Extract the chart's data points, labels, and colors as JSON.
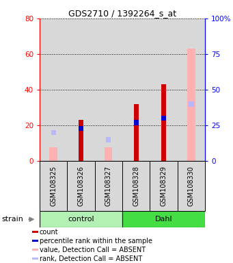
{
  "title": "GDS2710 / 1392264_s_at",
  "samples": [
    "GSM108325",
    "GSM108326",
    "GSM108327",
    "GSM108328",
    "GSM108329",
    "GSM108330"
  ],
  "groups": [
    "control",
    "control",
    "control",
    "Dahl",
    "Dahl",
    "Dahl"
  ],
  "group_names": [
    "control",
    "Dahl"
  ],
  "group_colors_light": "#b3f0b3",
  "group_colors_dark": "#44dd44",
  "count": [
    null,
    23,
    null,
    32,
    43,
    null
  ],
  "percentile_rank": [
    null,
    23,
    null,
    27,
    30,
    null
  ],
  "absent_value": [
    8,
    null,
    8,
    null,
    null,
    63
  ],
  "absent_rank": [
    20,
    null,
    15,
    null,
    null,
    40
  ],
  "count_color": "#cc0000",
  "rank_color": "#0000cc",
  "absent_value_color": "#ffb0b0",
  "absent_rank_color": "#b8b8ff",
  "ylim_left": [
    0,
    80
  ],
  "ylim_right": [
    0,
    100
  ],
  "yticks_left": [
    0,
    20,
    40,
    60,
    80
  ],
  "yticks_right": [
    0,
    25,
    50,
    75,
    100
  ],
  "ytick_labels_right": [
    "0",
    "25",
    "50",
    "75",
    "100%"
  ],
  "bg_color": "#d8d8d8",
  "legend_items": [
    {
      "color": "#cc0000",
      "label": "count"
    },
    {
      "color": "#0000cc",
      "label": "percentile rank within the sample"
    },
    {
      "color": "#ffb0b0",
      "label": "value, Detection Call = ABSENT"
    },
    {
      "color": "#b8b8ff",
      "label": "rank, Detection Call = ABSENT"
    }
  ]
}
